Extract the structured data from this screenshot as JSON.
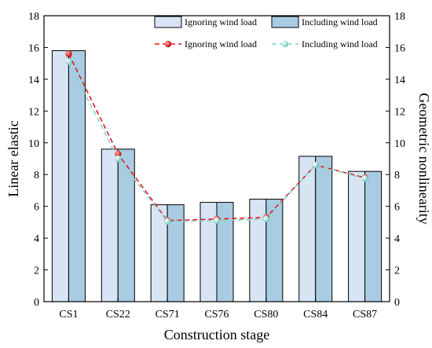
{
  "chart_data": {
    "type": "bar",
    "categories": [
      "CS1",
      "CS22",
      "CS71",
      "CS76",
      "CS80",
      "CS84",
      "CS87"
    ],
    "series": [
      {
        "name": "Ignoring wind load",
        "kind": "bar",
        "axis": "left",
        "values": [
          15.8,
          9.6,
          6.1,
          6.25,
          6.45,
          9.15,
          8.2
        ]
      },
      {
        "name": "Including wind load",
        "kind": "bar",
        "axis": "left",
        "values": [
          15.8,
          9.6,
          6.1,
          6.25,
          6.45,
          9.15,
          8.2
        ]
      },
      {
        "name": "Ignoring wind load",
        "kind": "line",
        "axis": "right",
        "values": [
          15.6,
          9.3,
          5.1,
          5.2,
          5.3,
          8.6,
          7.8
        ]
      },
      {
        "name": "Including wind load",
        "kind": "line",
        "axis": "right",
        "values": [
          15.1,
          9.0,
          5.05,
          5.1,
          5.2,
          8.6,
          7.75
        ]
      }
    ],
    "xlabel": "Construction stage",
    "ylabel": "Linear elastic",
    "y2label": "Geometric nonlinearity",
    "ylim": [
      0,
      18
    ],
    "y2lim": [
      0,
      18
    ],
    "yticks": [
      "0",
      "2",
      "4",
      "6",
      "8",
      "10",
      "12",
      "14",
      "16",
      "18"
    ],
    "y2ticks": [
      "0",
      "2",
      "4",
      "6",
      "8",
      "10",
      "12",
      "14",
      "16",
      "18"
    ],
    "grid": false,
    "legend_position": "top-right",
    "colors": {
      "bar_ignoring": "#d6e4f3",
      "bar_including": "#a9cce3",
      "line_ignoring": "#e8141b",
      "line_including": "#7fd6c9",
      "marker_ignoring": "#e02020",
      "marker_including": "#a8e6dc",
      "axis": "#000000"
    }
  }
}
